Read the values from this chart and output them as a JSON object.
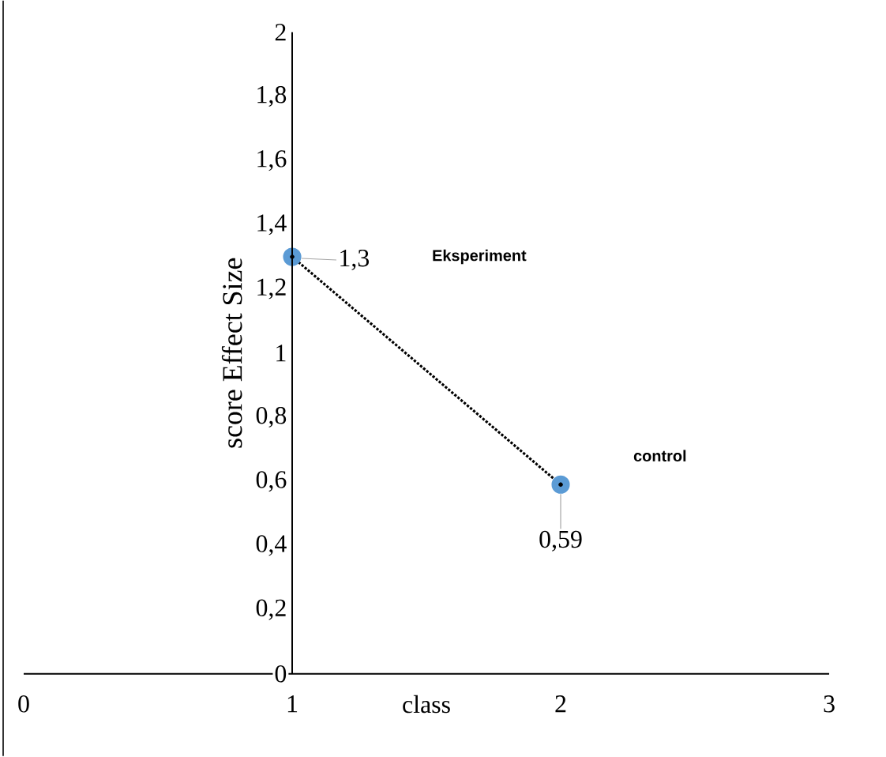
{
  "chart_data": {
    "type": "line",
    "xlabel": "class",
    "ylabel": "score Effect Size",
    "x": [
      1,
      2
    ],
    "series": [
      {
        "color": "#5b9bd5",
        "values": [
          1.3,
          0.59
        ],
        "value_labels": [
          "1,3",
          "0,59"
        ]
      }
    ],
    "xlim": [
      0,
      3
    ],
    "xticks": [
      0,
      1,
      2,
      3
    ],
    "ylim": [
      0,
      2
    ],
    "yticks": [
      0,
      {
        "value": 0.2,
        "label": "0,2"
      },
      {
        "value": 0.4,
        "label": "0,4"
      },
      {
        "value": 0.6,
        "label": "0,6"
      },
      {
        "value": 0.8,
        "label": "0,8"
      },
      1,
      {
        "value": 1.2,
        "label": "1,2"
      },
      {
        "value": 1.4,
        "label": "1,4"
      },
      {
        "value": 1.6,
        "label": "1,6"
      },
      {
        "value": 1.8,
        "label": "1,8"
      },
      2
    ],
    "marker": "circle",
    "line_style": "dotted",
    "annotations": [
      "Eksperiment",
      "control"
    ]
  }
}
